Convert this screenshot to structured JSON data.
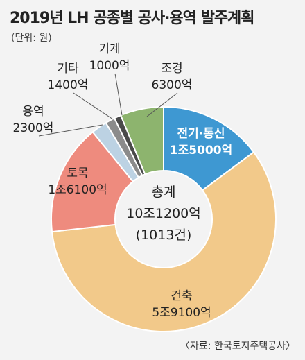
{
  "title": "2019년 LH 공종별 공사·용역 발주계획",
  "unit": "(단위: 원)",
  "source": "〈자료: 한국토지주택공사〉",
  "center": {
    "label": "총계",
    "total": "10조1200억",
    "count": "(1013건)"
  },
  "chart_data": {
    "type": "pie",
    "title": "2019년 LH 공종별 공사·용역 발주계획",
    "unit": "억원",
    "total": 101200,
    "slices": [
      {
        "name": "전기·통신",
        "label": "1조5000억",
        "value": 15000,
        "color": "#3e98d2"
      },
      {
        "name": "건축",
        "label": "5조9100억",
        "value": 59100,
        "color": "#f2c98a"
      },
      {
        "name": "토목",
        "label": "1조6100억",
        "value": 16100,
        "color": "#ee8b7e"
      },
      {
        "name": "용역",
        "label": "2300억",
        "value": 2300,
        "color": "#bcd2e3"
      },
      {
        "name": "기타",
        "label": "1400억",
        "value": 1400,
        "color": "#8b8b8b"
      },
      {
        "name": "기계",
        "label": "1000억",
        "value": 1000,
        "color": "#4a4a4a"
      },
      {
        "name": "조경",
        "label": "6300억",
        "value": 6300,
        "color": "#8db46e"
      }
    ]
  }
}
